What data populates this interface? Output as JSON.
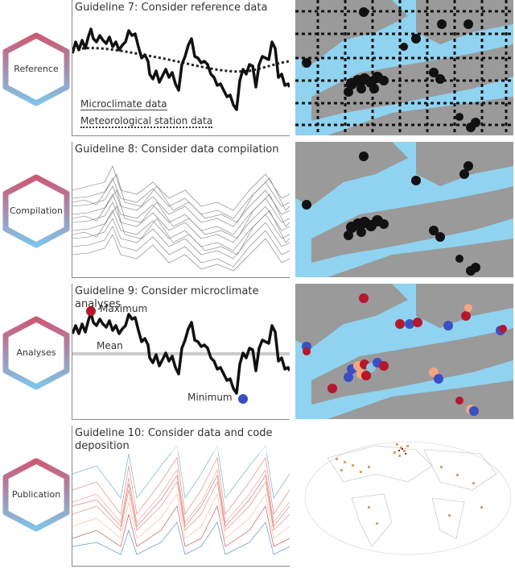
{
  "rows": [
    {
      "label": "Reference",
      "title": "Guideline 7: Consider reference data",
      "legend": [
        "Microclimate data",
        "Meteorological station data"
      ]
    },
    {
      "label": "Compilation",
      "title": "Guideline 8: Consider data compilation"
    },
    {
      "label": "Analyses",
      "title": "Guideline 9: Consider microclimate analyses",
      "annotations": {
        "max": "Maximum",
        "mean": "Mean",
        "min": "Minimum"
      }
    },
    {
      "label": "Publication",
      "title": "Guideline 10: Consider data and code deposition"
    }
  ],
  "colors": {
    "hex_top": "#cc5a73",
    "hex_bottom": "#7fc4e8",
    "water": "#8fd3f0",
    "land": "#9a9a9a",
    "point": "#111111",
    "max_color": "#b5172b",
    "min_color": "#3b4fc4",
    "mean_line": "#cccccc"
  }
}
